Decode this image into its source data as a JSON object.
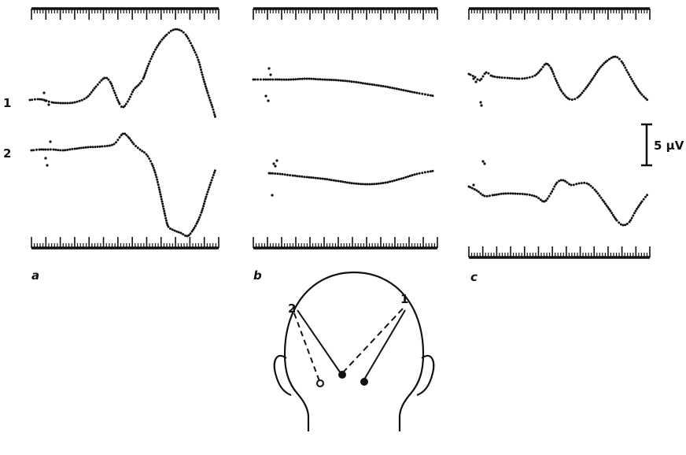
{
  "colors": {
    "ink": "#111111",
    "background": "#ffffff"
  },
  "trace_labels": {
    "channel_1": "1",
    "channel_2": "2"
  },
  "panel_labels": {
    "a": "a",
    "b": "b",
    "c": "c"
  },
  "scale_bar": {
    "label": "5 μV"
  },
  "electrode_labels": {
    "pair_2": "2",
    "pair_1": "1"
  },
  "electrodes": {
    "left": "open-circle-electrode",
    "middle": "filled-circle-electrode",
    "right": "filled-circle-electrode"
  }
}
